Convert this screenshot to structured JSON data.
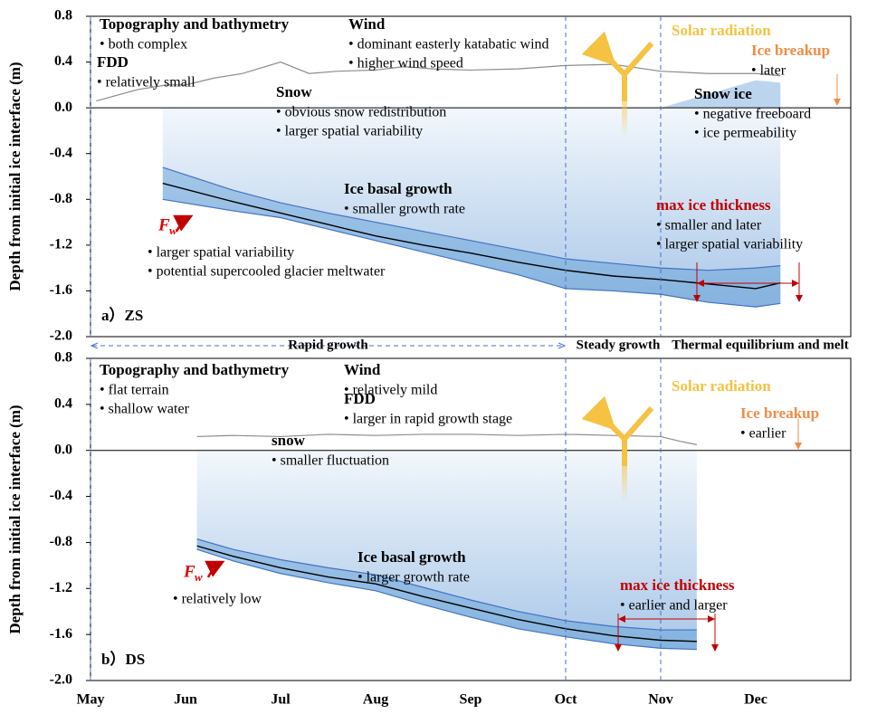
{
  "chart_data": [
    {
      "type": "line",
      "panel_label": "a）ZS",
      "y_label": "Depth from initial ice interface (m)",
      "xlim": [
        0,
        8
      ],
      "ylim": [
        -2.0,
        0.8
      ],
      "yticks": [
        0.8,
        0.4,
        {
          "value": 0,
          "label": "0.0"
        },
        -0.4,
        -0.8,
        -1.2,
        -1.6,
        {
          "value": -2,
          "label": "-2.0"
        }
      ],
      "stages": [
        "Rapid growth",
        "Steady growth",
        "Thermal equilibrium and melt"
      ],
      "series": [
        {
          "color": "#8c8c8c",
          "x": [
            0.06,
            0.5,
            0.8,
            1.0,
            1.3,
            1.6,
            2.0,
            2.3,
            2.6,
            3.0,
            3.3,
            3.6,
            4.0,
            4.5,
            5.0,
            5.5,
            6.0,
            6.5,
            7.0,
            7.26
          ],
          "values": [
            0.06,
            0.16,
            0.2,
            0.2,
            0.26,
            0.3,
            0.4,
            0.3,
            0.32,
            0.33,
            0.36,
            0.34,
            0.33,
            0.34,
            0.37,
            0.38,
            0.32,
            0.3,
            0.3,
            0.28
          ]
        },
        {
          "color": "#4472c4",
          "x": [
            0.76,
            1.5,
            2.0,
            2.5,
            3.0,
            3.5,
            4.0,
            4.5,
            5.0,
            5.5,
            6.0,
            6.5,
            7.0,
            7.26
          ],
          "values": [
            -0.52,
            -0.72,
            -0.83,
            -0.92,
            -1.0,
            -1.08,
            -1.16,
            -1.24,
            -1.32,
            -1.36,
            -1.4,
            -1.42,
            -1.4,
            -1.38
          ]
        },
        {
          "color": "#000000",
          "x": [
            0.76,
            1.5,
            2.0,
            2.5,
            3.0,
            3.5,
            4.0,
            4.5,
            5.0,
            5.5,
            6.0,
            6.5,
            7.0,
            7.26
          ],
          "values": [
            -0.66,
            -0.82,
            -0.92,
            -1.02,
            -1.12,
            -1.2,
            -1.27,
            -1.35,
            -1.42,
            -1.47,
            -1.5,
            -1.54,
            -1.58,
            -1.53
          ]
        },
        {
          "color": "#4472c4",
          "x": [
            0.76,
            1.5,
            2.0,
            2.5,
            3.0,
            3.5,
            4.0,
            4.5,
            5.0,
            5.5,
            6.0,
            6.5,
            7.0,
            7.26
          ],
          "values": [
            -0.8,
            -0.9,
            -0.96,
            -1.06,
            -1.16,
            -1.26,
            -1.36,
            -1.46,
            -1.58,
            -1.6,
            -1.63,
            -1.7,
            -1.74,
            -1.71
          ]
        }
      ],
      "annotations": [
        {
          "title": "Topography and bathymetry",
          "items": [
            "• both complex"
          ]
        },
        {
          "title": "FDD",
          "items": [
            "• relatively small"
          ]
        },
        {
          "title": "Wind",
          "items": [
            "• dominant easterly katabatic wind",
            "• higher wind speed"
          ]
        },
        {
          "title": "Snow",
          "items": [
            "• obvious snow redistribution",
            "• larger spatial variability"
          ]
        },
        {
          "title": "Solar radiation",
          "color": "#f5c242",
          "items": []
        },
        {
          "title": "Ice breakup",
          "color": "#f08c46",
          "items": [
            "• later"
          ]
        },
        {
          "title": "Snow ice",
          "items": [
            "• negative freeboard",
            "• ice permeability"
          ]
        },
        {
          "title": "Ice basal growth",
          "items": [
            "• smaller growth rate"
          ]
        },
        {
          "title": "max ice thickness",
          "color": "#c00000",
          "items": [
            "• smaller and later",
            "• larger spatial variability"
          ]
        },
        {
          "symbol": "F",
          "subscript": "w",
          "color": "#e00000",
          "items": [
            "• larger spatial variability",
            "• potential supercooled glacier meltwater"
          ]
        }
      ]
    },
    {
      "type": "line",
      "panel_label": "b）DS",
      "y_label": "Depth from initial ice interface (m)",
      "xlim": [
        0,
        8
      ],
      "ylim": [
        -2.0,
        0.8
      ],
      "xticks": [
        {
          "value": 0,
          "label": "May"
        },
        {
          "value": 1,
          "label": "Jun"
        },
        {
          "value": 2,
          "label": "Jul"
        },
        {
          "value": 3,
          "label": "Aug"
        },
        {
          "value": 4,
          "label": "Sep"
        },
        {
          "value": 5,
          "label": "Oct"
        },
        {
          "value": 6,
          "label": "Nov"
        },
        {
          "value": 7,
          "label": "Dec"
        }
      ],
      "yticks": [
        0.8,
        0.4,
        {
          "value": 0,
          "label": "0.0"
        },
        -0.4,
        -0.8,
        -1.2,
        -1.6,
        {
          "value": -2,
          "label": "-2.0"
        }
      ],
      "series": [
        {
          "color": "#8c8c8c",
          "x": [
            1.12,
            1.5,
            2.0,
            2.5,
            3.0,
            3.5,
            4.0,
            4.5,
            5.0,
            5.5,
            6.0,
            6.2,
            6.38
          ],
          "values": [
            0.12,
            0.13,
            0.12,
            0.14,
            0.13,
            0.14,
            0.14,
            0.13,
            0.14,
            0.13,
            0.12,
            0.08,
            0.05
          ]
        },
        {
          "color": "#4472c4",
          "x": [
            1.12,
            1.5,
            2.0,
            2.5,
            3.0,
            3.5,
            4.0,
            4.5,
            5.0,
            5.5,
            6.0,
            6.38
          ],
          "values": [
            -0.77,
            -0.86,
            -0.95,
            -1.02,
            -1.08,
            -1.19,
            -1.3,
            -1.4,
            -1.48,
            -1.53,
            -1.56,
            -1.56
          ]
        },
        {
          "color": "#000000",
          "x": [
            1.12,
            1.5,
            2.0,
            2.5,
            3.0,
            3.5,
            4.0,
            4.5,
            5.0,
            5.5,
            6.0,
            6.38
          ],
          "values": [
            -0.83,
            -0.92,
            -1.02,
            -1.1,
            -1.16,
            -1.27,
            -1.37,
            -1.47,
            -1.55,
            -1.61,
            -1.65,
            -1.66
          ]
        },
        {
          "color": "#4472c4",
          "x": [
            1.12,
            1.5,
            2.0,
            2.5,
            3.0,
            3.5,
            4.0,
            4.5,
            5.0,
            5.5,
            6.0,
            6.38
          ],
          "values": [
            -0.86,
            -0.96,
            -1.07,
            -1.15,
            -1.22,
            -1.34,
            -1.45,
            -1.55,
            -1.62,
            -1.68,
            -1.72,
            -1.73
          ]
        }
      ],
      "annotations": [
        {
          "title": "Topography and bathymetry",
          "items": [
            "• flat terrain",
            "• shallow water"
          ]
        },
        {
          "title": "Wind",
          "items": [
            "• relatively mild"
          ]
        },
        {
          "title": "FDD",
          "items": [
            "• larger in rapid growth stage"
          ]
        },
        {
          "title": "Solar radiation",
          "color": "#f5c242",
          "items": []
        },
        {
          "title": "Ice breakup",
          "color": "#f08c46",
          "items": [
            "• earlier"
          ]
        },
        {
          "title": "snow",
          "items": [
            "• smaller fluctuation"
          ]
        },
        {
          "title": "Ice basal growth",
          "items": [
            "• larger growth rate"
          ]
        },
        {
          "title": "max ice thickness",
          "color": "#c00000",
          "items": [
            "• earlier and larger"
          ]
        },
        {
          "symbol": "F",
          "subscript": "w",
          "color": "#e00000",
          "items": [
            "• relatively low"
          ]
        }
      ]
    }
  ]
}
